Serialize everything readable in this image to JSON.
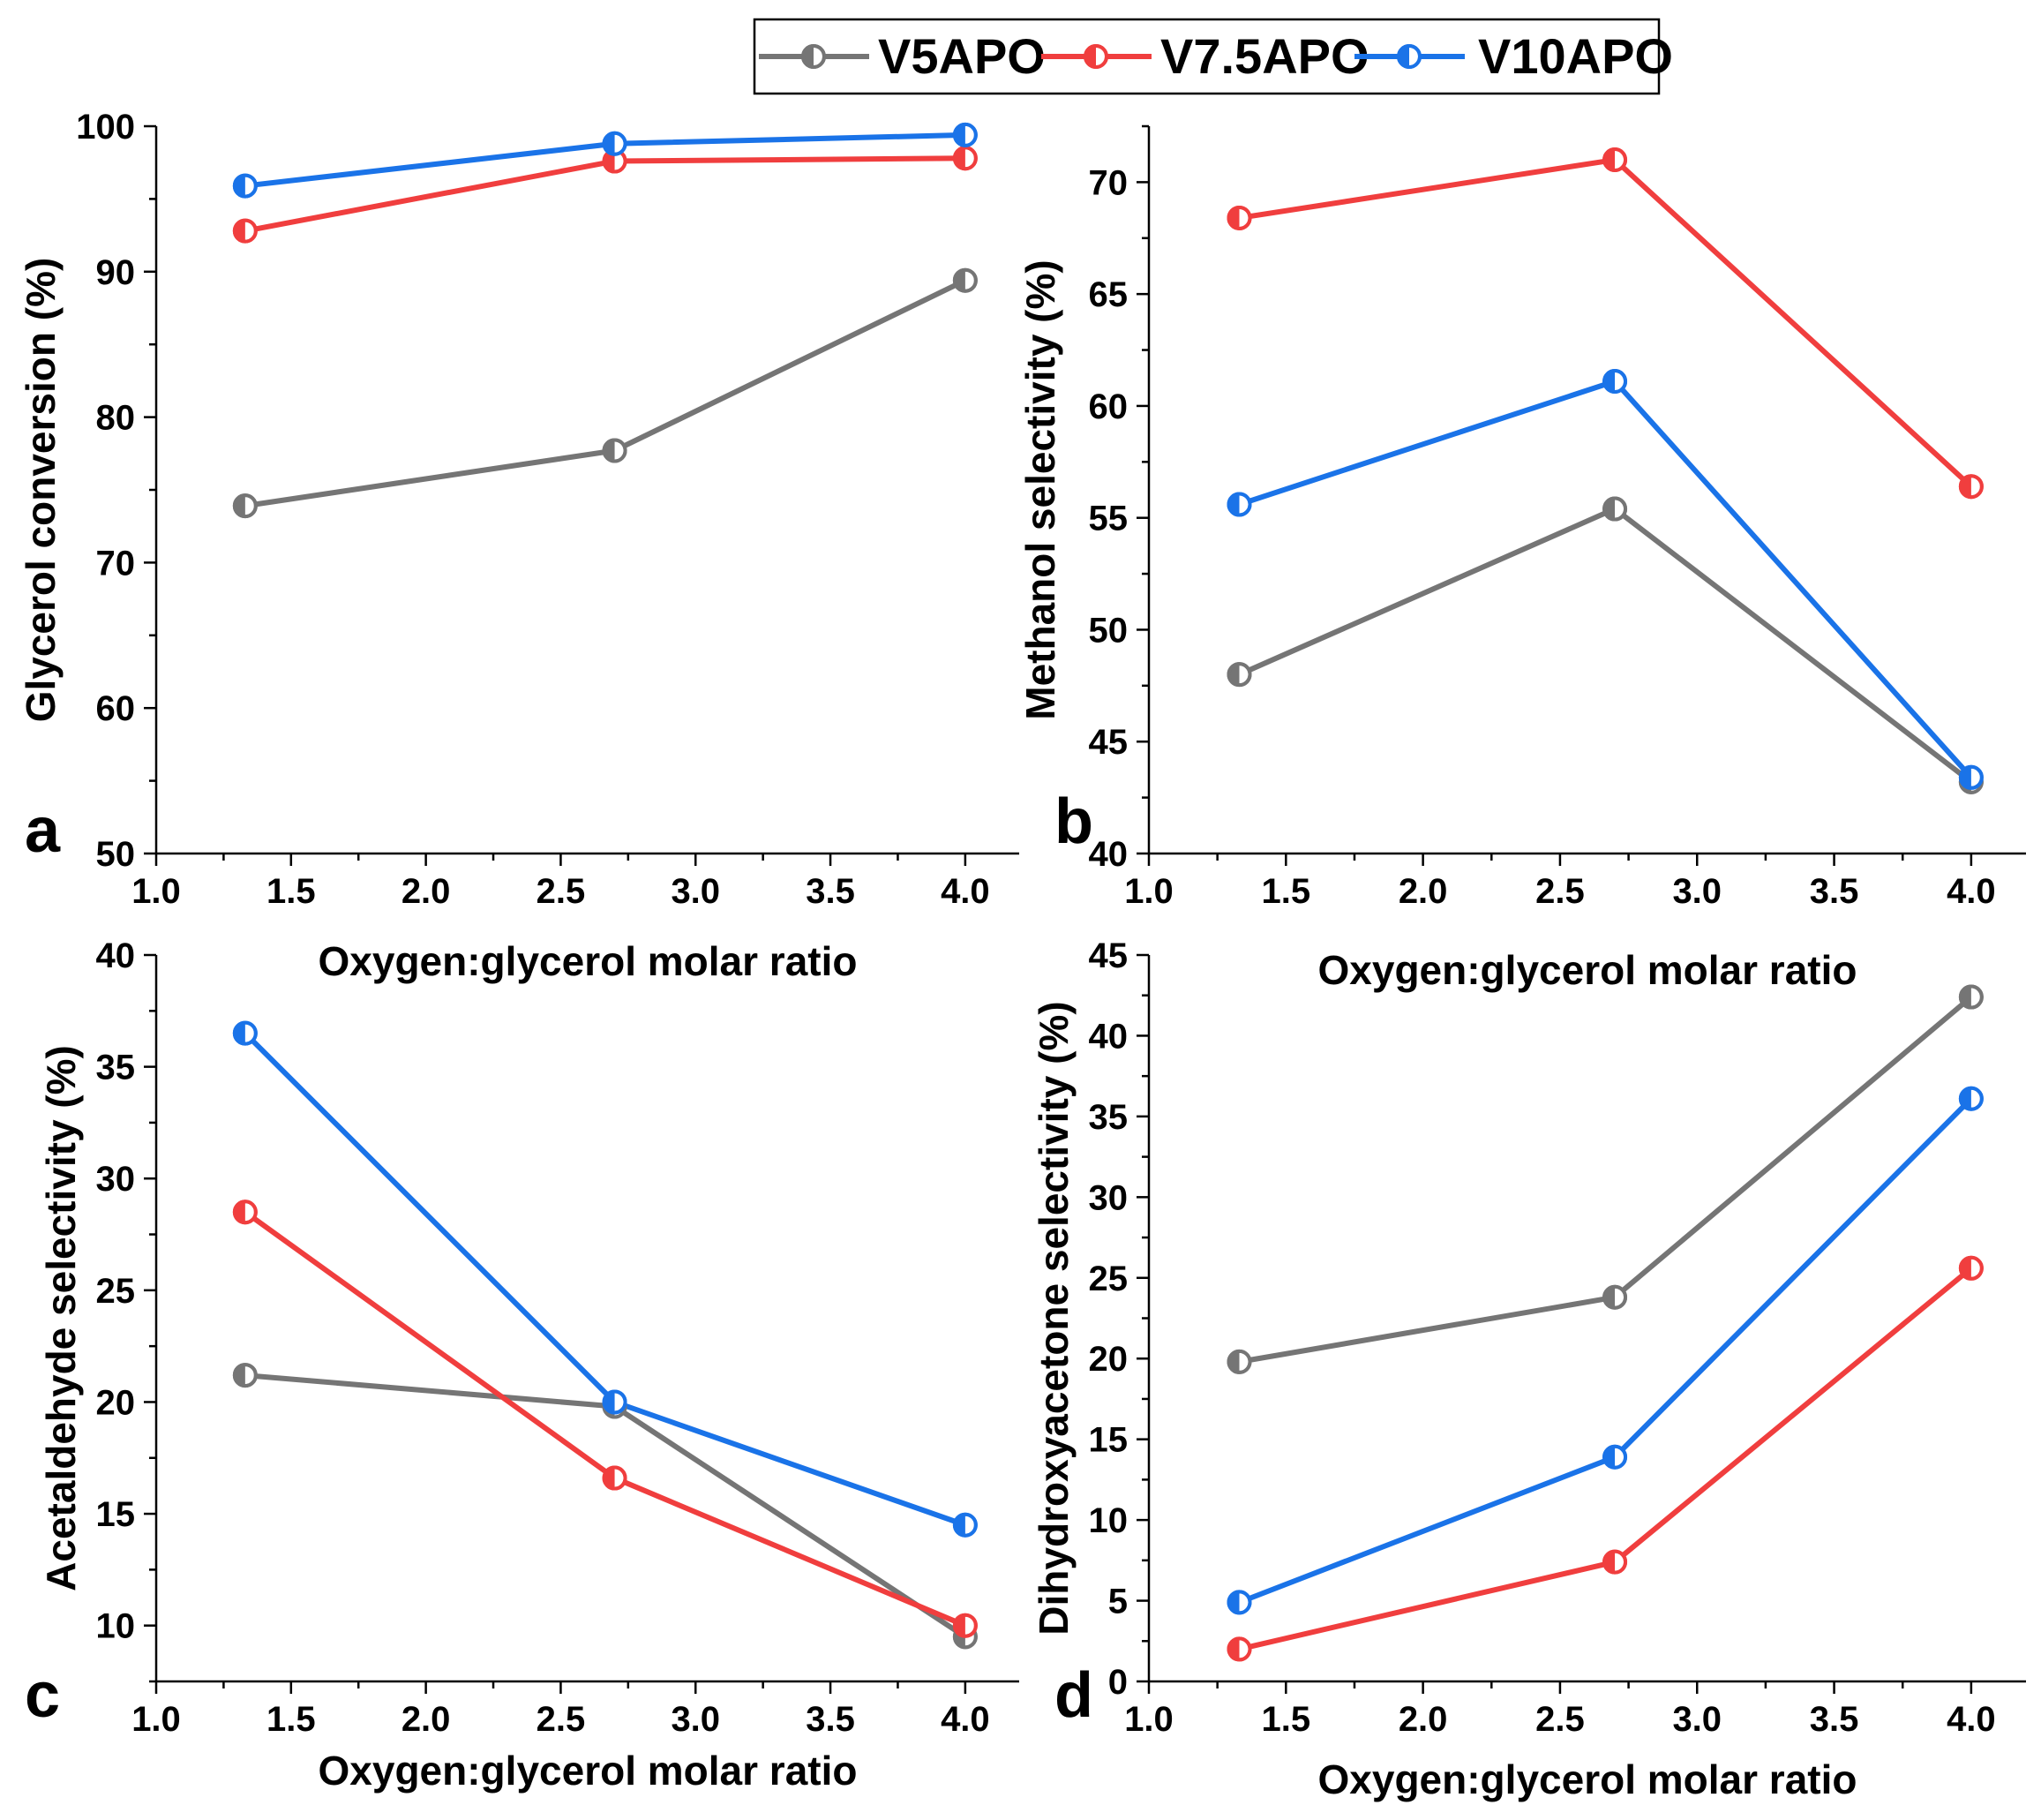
{
  "legend": {
    "entries": [
      {
        "name": "V5APO",
        "color": "#757575"
      },
      {
        "name": "V7.5APO",
        "color": "#f03e3e"
      },
      {
        "name": "V10APO",
        "color": "#1a73e8"
      }
    ]
  },
  "chart_data": [
    {
      "type": "line",
      "panel_label": "a",
      "xlabel": "Oxygen:glycerol molar ratio",
      "ylabel": "Glycerol conversion (%)",
      "xlim": [
        1.0,
        4.2
      ],
      "ylim": [
        50,
        100
      ],
      "x_ticks": [
        "1.0",
        "1.5",
        "2.0",
        "2.5",
        "3.0",
        "3.5",
        "4.0"
      ],
      "y_ticks": [
        "50",
        "60",
        "70",
        "80",
        "90",
        "100"
      ],
      "x": [
        1.33,
        2.7,
        4.0
      ],
      "series": [
        {
          "name": "V5APO",
          "values": [
            73.9,
            77.7,
            89.4
          ]
        },
        {
          "name": "V7.5APO",
          "values": [
            92.8,
            97.6,
            97.8
          ]
        },
        {
          "name": "V10APO",
          "values": [
            95.9,
            98.8,
            99.4
          ]
        }
      ]
    },
    {
      "type": "line",
      "panel_label": "b",
      "xlabel": "Oxygen:glycerol molar ratio",
      "ylabel": "Methanol selectivity (%)",
      "xlim": [
        1.0,
        4.2
      ],
      "ylim": [
        40,
        72.5
      ],
      "x_ticks": [
        "1.0",
        "1.5",
        "2.0",
        "2.5",
        "3.0",
        "3.5",
        "4.0"
      ],
      "y_ticks": [
        "40",
        "45",
        "50",
        "55",
        "60",
        "65",
        "70"
      ],
      "x": [
        1.33,
        2.7,
        4.0
      ],
      "series": [
        {
          "name": "V5APO",
          "values": [
            48.0,
            55.4,
            43.2
          ]
        },
        {
          "name": "V7.5APO",
          "values": [
            68.4,
            71.0,
            56.4
          ]
        },
        {
          "name": "V10APO",
          "values": [
            55.6,
            61.1,
            43.4
          ]
        }
      ]
    },
    {
      "type": "line",
      "panel_label": "c",
      "xlabel": "Oxygen:glycerol molar ratio",
      "ylabel": "Acetaldehyde selectivity (%)",
      "xlim": [
        1.0,
        4.2
      ],
      "ylim": [
        7.5,
        40
      ],
      "x_ticks": [
        "1.0",
        "1.5",
        "2.0",
        "2.5",
        "3.0",
        "3.5",
        "4.0"
      ],
      "y_ticks": [
        "10",
        "15",
        "20",
        "25",
        "30",
        "35",
        "40"
      ],
      "x": [
        1.33,
        2.7,
        4.0
      ],
      "series": [
        {
          "name": "V5APO",
          "values": [
            21.2,
            19.8,
            9.5
          ]
        },
        {
          "name": "V7.5APO",
          "values": [
            28.5,
            16.6,
            10.0
          ]
        },
        {
          "name": "V10APO",
          "values": [
            36.5,
            20.0,
            14.5
          ]
        }
      ]
    },
    {
      "type": "line",
      "panel_label": "d",
      "xlabel": "Oxygen:glycerol molar ratio",
      "ylabel": "Dihydroxyacetone selectivity (%)",
      "xlim": [
        1.0,
        4.2
      ],
      "ylim": [
        0,
        45
      ],
      "x_ticks": [
        "1.0",
        "1.5",
        "2.0",
        "2.5",
        "3.0",
        "3.5",
        "4.0"
      ],
      "y_ticks": [
        "0",
        "5",
        "10",
        "15",
        "20",
        "25",
        "30",
        "35",
        "40",
        "45"
      ],
      "x": [
        1.33,
        2.7,
        4.0
      ],
      "series": [
        {
          "name": "V5APO",
          "values": [
            19.8,
            23.8,
            42.4
          ]
        },
        {
          "name": "V7.5APO",
          "values": [
            2.0,
            7.4,
            25.6
          ]
        },
        {
          "name": "V10APO",
          "values": [
            4.9,
            13.9,
            36.1
          ]
        }
      ]
    }
  ]
}
